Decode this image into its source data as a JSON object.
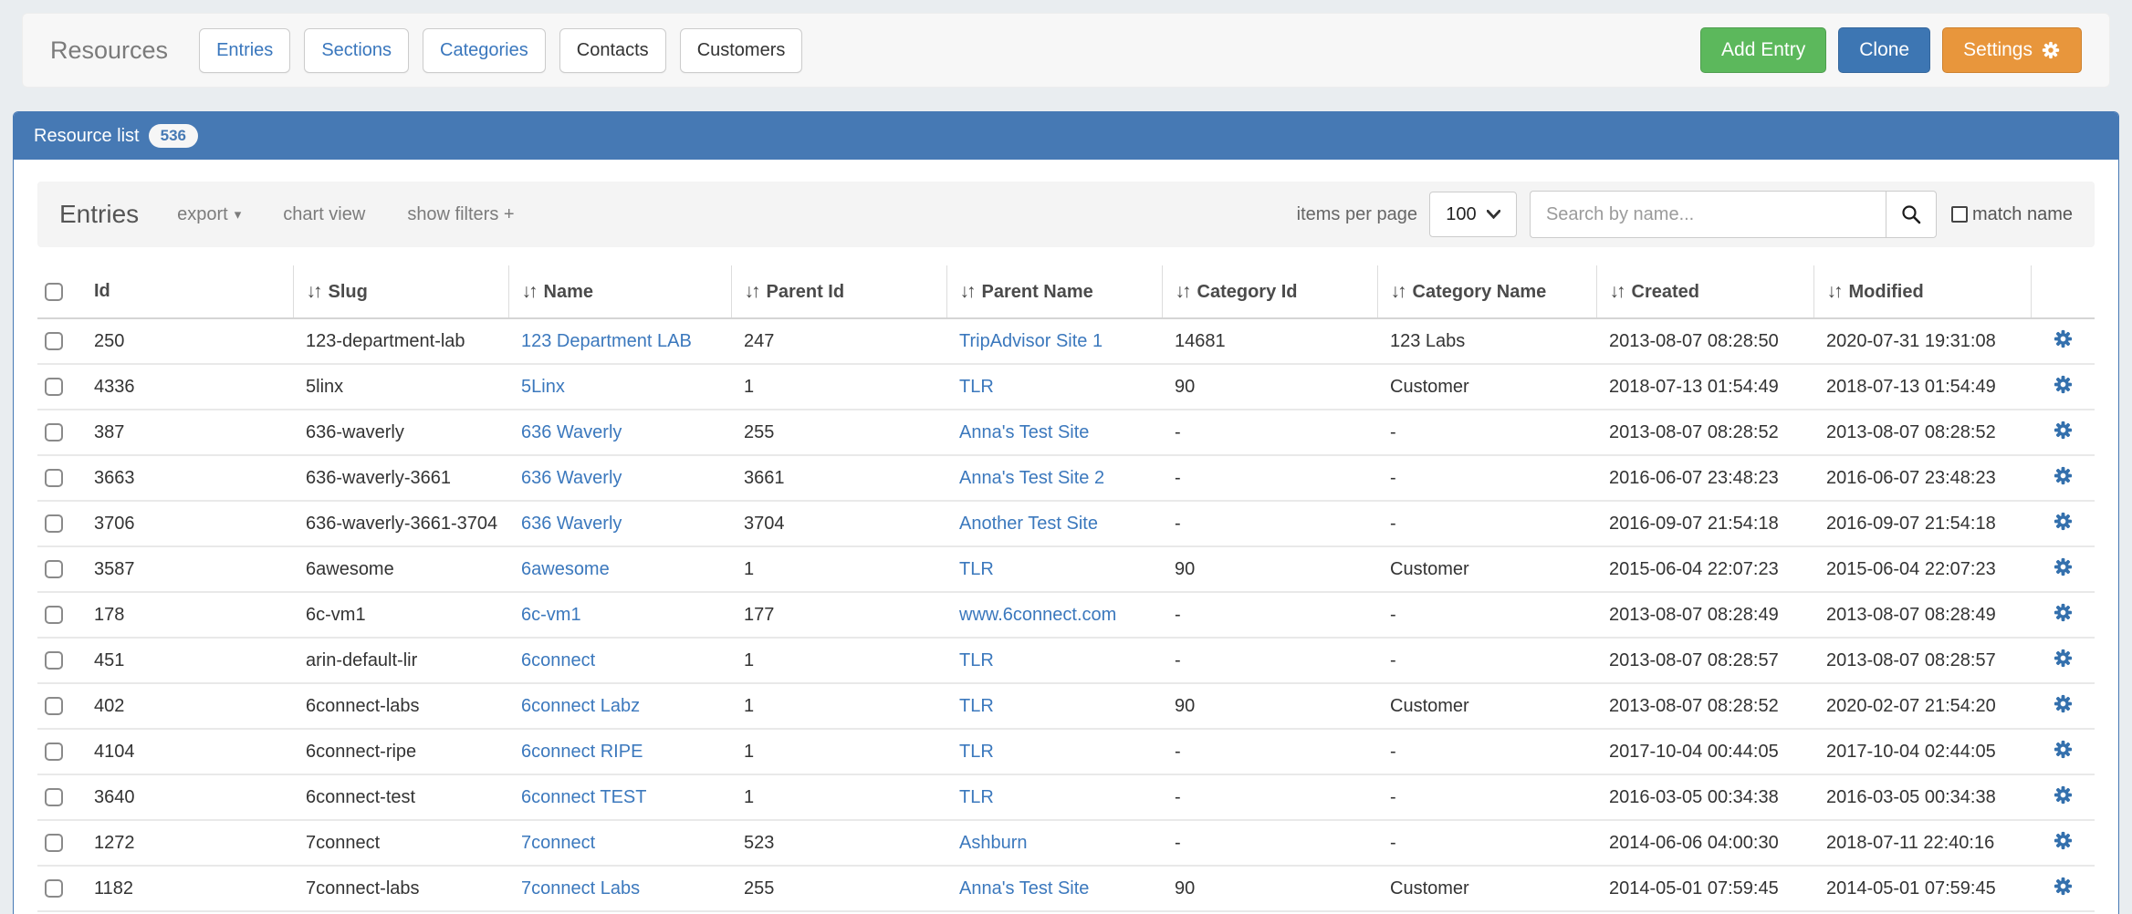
{
  "colors": {
    "accent_blue": "#4679b4",
    "link_blue": "#3b78bd",
    "button_green": "#5cb85c",
    "button_blue": "#3d76b3",
    "button_orange": "#e8963c",
    "gear_blue": "#3470ad"
  },
  "icons": {
    "sort": "↓↑",
    "caret_down": "▾"
  },
  "header": {
    "title": "Resources",
    "nav_buttons": [
      {
        "label": "Entries",
        "style": "link"
      },
      {
        "label": "Sections",
        "style": "link"
      },
      {
        "label": "Categories",
        "style": "link"
      },
      {
        "label": "Contacts",
        "style": "default"
      },
      {
        "label": "Customers",
        "style": "default"
      }
    ],
    "actions": {
      "add_entry": "Add Entry",
      "clone": "Clone",
      "settings": "Settings"
    }
  },
  "panel": {
    "title": "Resource list",
    "count": "536"
  },
  "toolbar": {
    "heading": "Entries",
    "export_label": "export",
    "chart_view_label": "chart view",
    "show_filters_label": "show filters +",
    "items_per_page_label": "items per page",
    "items_per_page_value": "100",
    "search_placeholder": "Search by name...",
    "match_name_label": "match name"
  },
  "table": {
    "headers": [
      {
        "label": "Id",
        "sortable": false
      },
      {
        "label": "Slug",
        "sortable": true
      },
      {
        "label": "Name",
        "sortable": true
      },
      {
        "label": "Parent Id",
        "sortable": true
      },
      {
        "label": "Parent Name",
        "sortable": true
      },
      {
        "label": "Category Id",
        "sortable": true
      },
      {
        "label": "Category Name",
        "sortable": true
      },
      {
        "label": "Created",
        "sortable": true
      },
      {
        "label": "Modified",
        "sortable": true
      }
    ],
    "rows": [
      {
        "id": "250",
        "slug": "123-department-lab",
        "name": "123 Department LAB",
        "parent_id": "247",
        "parent_name": "TripAdvisor Site 1",
        "category_id": "14681",
        "category_name": "123 Labs",
        "created": "2013-08-07 08:28:50",
        "modified": "2020-07-31 19:31:08"
      },
      {
        "id": "4336",
        "slug": "5linx",
        "name": "5Linx",
        "parent_id": "1",
        "parent_name": "TLR",
        "category_id": "90",
        "category_name": "Customer",
        "created": "2018-07-13 01:54:49",
        "modified": "2018-07-13 01:54:49"
      },
      {
        "id": "387",
        "slug": "636-waverly",
        "name": "636 Waverly",
        "parent_id": "255",
        "parent_name": "Anna's Test Site",
        "category_id": "-",
        "category_name": "-",
        "created": "2013-08-07 08:28:52",
        "modified": "2013-08-07 08:28:52"
      },
      {
        "id": "3663",
        "slug": "636-waverly-3661",
        "name": "636 Waverly",
        "parent_id": "3661",
        "parent_name": "Anna's Test Site 2",
        "category_id": "-",
        "category_name": "-",
        "created": "2016-06-07 23:48:23",
        "modified": "2016-06-07 23:48:23"
      },
      {
        "id": "3706",
        "slug": "636-waverly-3661-3704",
        "name": "636 Waverly",
        "parent_id": "3704",
        "parent_name": "Another Test Site",
        "category_id": "-",
        "category_name": "-",
        "created": "2016-09-07 21:54:18",
        "modified": "2016-09-07 21:54:18"
      },
      {
        "id": "3587",
        "slug": "6awesome",
        "name": "6awesome",
        "parent_id": "1",
        "parent_name": "TLR",
        "category_id": "90",
        "category_name": "Customer",
        "created": "2015-06-04 22:07:23",
        "modified": "2015-06-04 22:07:23"
      },
      {
        "id": "178",
        "slug": "6c-vm1",
        "name": "6c-vm1",
        "parent_id": "177",
        "parent_name": "www.6connect.com",
        "category_id": "-",
        "category_name": "-",
        "created": "2013-08-07 08:28:49",
        "modified": "2013-08-07 08:28:49"
      },
      {
        "id": "451",
        "slug": "arin-default-lir",
        "name": "6connect",
        "parent_id": "1",
        "parent_name": "TLR",
        "category_id": "-",
        "category_name": "-",
        "created": "2013-08-07 08:28:57",
        "modified": "2013-08-07 08:28:57"
      },
      {
        "id": "402",
        "slug": "6connect-labs",
        "name": "6connect Labz",
        "parent_id": "1",
        "parent_name": "TLR",
        "category_id": "90",
        "category_name": "Customer",
        "created": "2013-08-07 08:28:52",
        "modified": "2020-02-07 21:54:20"
      },
      {
        "id": "4104",
        "slug": "6connect-ripe",
        "name": "6connect RIPE",
        "parent_id": "1",
        "parent_name": "TLR",
        "category_id": "-",
        "category_name": "-",
        "created": "2017-10-04 00:44:05",
        "modified": "2017-10-04 02:44:05"
      },
      {
        "id": "3640",
        "slug": "6connect-test",
        "name": "6connect TEST",
        "parent_id": "1",
        "parent_name": "TLR",
        "category_id": "-",
        "category_name": "-",
        "created": "2016-03-05 00:34:38",
        "modified": "2016-03-05 00:34:38"
      },
      {
        "id": "1272",
        "slug": "7connect",
        "name": "7connect",
        "parent_id": "523",
        "parent_name": "Ashburn",
        "category_id": "-",
        "category_name": "-",
        "created": "2014-06-06 04:00:30",
        "modified": "2018-07-11 22:40:16"
      },
      {
        "id": "1182",
        "slug": "7connect-labs",
        "name": "7connect Labs",
        "parent_id": "255",
        "parent_name": "Anna's Test Site",
        "category_id": "90",
        "category_name": "Customer",
        "created": "2014-05-01 07:59:45",
        "modified": "2014-05-01 07:59:45"
      }
    ]
  }
}
